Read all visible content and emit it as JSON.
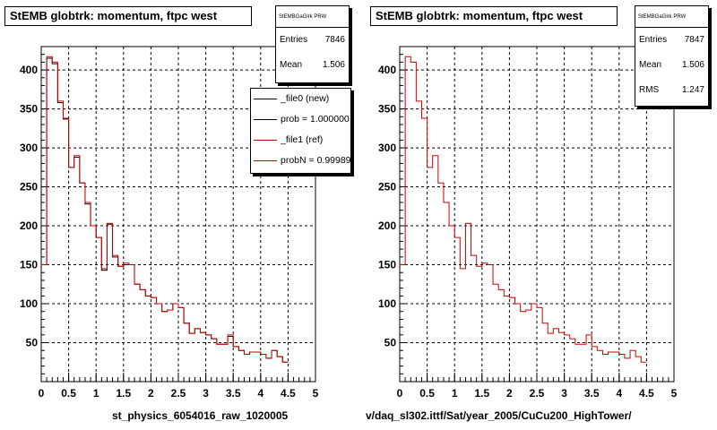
{
  "left": {
    "title": "StEMB globtrk: momentum, ftpc west",
    "stats": {
      "name": "StEMBGaGlrk PRW",
      "rows": [
        {
          "k": "Entries",
          "v": "7846"
        },
        {
          "k": "Mean",
          "v": "1.506"
        }
      ]
    },
    "legend": [
      {
        "text": "_file0 (new)",
        "color": "#000000"
      },
      {
        "text": "prob = 1.000000",
        "color": "#000000"
      },
      {
        "text": "_file1 (ref)",
        "color": "#cc0000"
      },
      {
        "text": "probN = 0.99989",
        "color": "#cc0000"
      }
    ],
    "footer": "st_physics_6054016_raw_1020005"
  },
  "right": {
    "title": "StEMB globtrk: momentum, ftpc west",
    "stats": {
      "name": "StEMBGaGlrk PRW",
      "rows": [
        {
          "k": "Entries",
          "v": "7847"
        },
        {
          "k": "Mean",
          "v": "1.506"
        },
        {
          "k": "RMS",
          "v": "1.247"
        }
      ]
    },
    "footer": "v/daq_sl302.ittf/Sat/year_2005/CuCu200_HighTower/"
  },
  "chart_data": [
    {
      "type": "histogram",
      "title": "StEMB globtrk: momentum, ftpc west",
      "xlim": [
        0,
        5
      ],
      "ylim": [
        0,
        430
      ],
      "xticks": [
        "0",
        "0.5",
        "1",
        "1.5",
        "2",
        "2.5",
        "3",
        "3.5",
        "4",
        "4.5",
        "5"
      ],
      "yticks": [
        "50",
        "100",
        "150",
        "200",
        "250",
        "300",
        "350",
        "400"
      ],
      "grid": true,
      "bin_width": 0.1,
      "series": [
        {
          "name": "_file0 (new)",
          "color": "#000000",
          "values": [
            150,
            415,
            408,
            358,
            337,
            275,
            288,
            255,
            228,
            200,
            185,
            143,
            202,
            160,
            148,
            150,
            150,
            125,
            118,
            110,
            108,
            100,
            90,
            92,
            100,
            95,
            75,
            62,
            68,
            63,
            60,
            55,
            48,
            48,
            58,
            45,
            40,
            35,
            38,
            38,
            35,
            30,
            40,
            32,
            25
          ]
        },
        {
          "name": "_file1 (ref)",
          "color": "#cc0000",
          "values": [
            150,
            417,
            410,
            360,
            338,
            275,
            290,
            255,
            230,
            200,
            185,
            145,
            203,
            162,
            148,
            152,
            150,
            125,
            118,
            110,
            108,
            100,
            90,
            92,
            100,
            95,
            75,
            62,
            68,
            63,
            60,
            55,
            48,
            48,
            60,
            45,
            40,
            35,
            38,
            38,
            35,
            30,
            40,
            32,
            25
          ]
        }
      ]
    },
    {
      "type": "histogram",
      "title": "StEMB globtrk: momentum, ftpc west",
      "xlim": [
        0,
        5
      ],
      "ylim": [
        0,
        430
      ],
      "xticks": [
        "0",
        "0.5",
        "1",
        "1.5",
        "2",
        "2.5",
        "3",
        "3.5",
        "4",
        "4.5",
        "5"
      ],
      "yticks": [
        "50",
        "100",
        "150",
        "200",
        "250",
        "300",
        "350",
        "400"
      ],
      "grid": true,
      "bin_width": 0.1,
      "series": [
        {
          "name": "_file1 (ref)",
          "color": "#cc0000",
          "values": [
            150,
            417,
            410,
            360,
            338,
            275,
            290,
            255,
            230,
            200,
            185,
            145,
            203,
            162,
            148,
            152,
            150,
            125,
            118,
            110,
            108,
            100,
            90,
            92,
            100,
            95,
            75,
            62,
            68,
            63,
            60,
            55,
            48,
            48,
            60,
            45,
            40,
            35,
            38,
            38,
            35,
            30,
            40,
            32,
            25
          ]
        }
      ]
    }
  ]
}
